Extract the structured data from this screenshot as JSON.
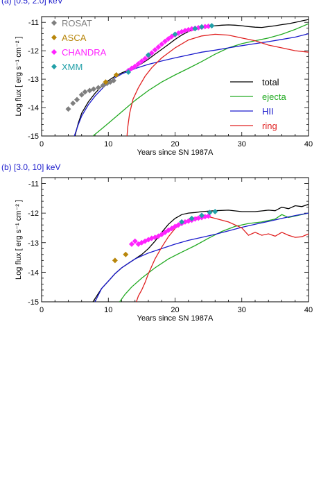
{
  "figure": {
    "panels": [
      {
        "label": "(a) [0.5, 2.0] keV",
        "xlabel": "Years since SN 1987A",
        "ylabel": "Log flux [ erg s⁻¹ cm⁻² ]"
      },
      {
        "label": "(b) [3.0, 10] keV",
        "xlabel": "Years since SN 1987A",
        "ylabel": "Log flux [ erg s⁻¹ cm⁻² ]"
      }
    ],
    "colors": {
      "total": "#000000",
      "ejecta": "#22aa22",
      "hii": "#1a1acc",
      "ring": "#e02020",
      "rosat": "#7f7f7f",
      "asca": "#b8860b",
      "chandra": "#ff22ff",
      "xmm": "#22a0a8",
      "label": "#1a1acc"
    }
  },
  "chart_data": [
    {
      "type": "line",
      "title": "(a) [0.5, 2.0] keV",
      "xlabel": "Years since SN 1987A",
      "ylabel": "Log flux [ erg s⁻¹ cm⁻² ]",
      "xlim": [
        0,
        40
      ],
      "ylim": [
        -15,
        -10.8
      ],
      "xticks": [
        0,
        10,
        20,
        30,
        40
      ],
      "yticks": [
        -15,
        -14,
        -13,
        -12,
        -11
      ],
      "legend_lines": [
        "total",
        "ejecta",
        "HII",
        "ring"
      ],
      "legend_markers": [
        "ROSAT",
        "ASCA",
        "CHANDRA",
        "XMM"
      ],
      "series": [
        {
          "name": "total",
          "type": "line",
          "x": [
            5,
            5.5,
            6,
            7,
            8,
            9,
            10,
            11,
            12,
            13,
            14,
            15,
            16,
            17,
            18,
            19,
            20,
            21,
            22,
            23,
            24,
            25,
            26,
            27,
            28,
            29,
            30,
            31,
            32,
            33,
            34,
            35,
            36,
            37,
            38,
            39,
            40
          ],
          "y": [
            -15,
            -14.55,
            -14.2,
            -13.8,
            -13.5,
            -13.25,
            -13.05,
            -12.9,
            -12.78,
            -12.68,
            -12.58,
            -12.45,
            -12.3,
            -12.12,
            -11.95,
            -11.78,
            -11.6,
            -11.45,
            -11.32,
            -11.25,
            -11.2,
            -11.15,
            -11.12,
            -11.1,
            -11.09,
            -11.1,
            -11.12,
            -11.15,
            -11.17,
            -11.18,
            -11.15,
            -11.12,
            -11.08,
            -11.05,
            -11.0,
            -10.95,
            -10.9
          ]
        },
        {
          "name": "ejecta",
          "type": "line",
          "x": [
            7.7,
            9,
            10,
            12,
            14,
            16,
            18,
            20,
            22,
            24,
            26,
            28,
            30,
            32,
            34,
            36,
            38,
            40
          ],
          "y": [
            -15,
            -14.75,
            -14.55,
            -14.15,
            -13.75,
            -13.4,
            -13.1,
            -12.85,
            -12.62,
            -12.38,
            -12.12,
            -11.9,
            -11.75,
            -11.65,
            -11.55,
            -11.42,
            -11.25,
            -11.05
          ]
        },
        {
          "name": "HII",
          "type": "line",
          "x": [
            4.9,
            5.5,
            6,
            7,
            8,
            9,
            10,
            11,
            12,
            13,
            14,
            15,
            16,
            18,
            20,
            22,
            24,
            26,
            28,
            30,
            32,
            34,
            36,
            38,
            40
          ],
          "y": [
            -15,
            -14.6,
            -14.3,
            -13.9,
            -13.6,
            -13.35,
            -13.12,
            -12.95,
            -12.82,
            -12.72,
            -12.63,
            -12.55,
            -12.48,
            -12.36,
            -12.25,
            -12.15,
            -12.05,
            -11.98,
            -11.9,
            -11.82,
            -11.75,
            -11.68,
            -11.6,
            -11.52,
            -11.4
          ]
        },
        {
          "name": "ring",
          "type": "line",
          "x": [
            12.8,
            12.9,
            13.2,
            13.7,
            14.5,
            15.5,
            16.5,
            18,
            20,
            22,
            24,
            26,
            28,
            30,
            32,
            34,
            36,
            38,
            40
          ],
          "y": [
            -15,
            -14.7,
            -14.2,
            -13.7,
            -13.3,
            -12.9,
            -12.6,
            -12.25,
            -11.9,
            -11.62,
            -11.48,
            -11.42,
            -11.45,
            -11.55,
            -11.65,
            -11.8,
            -11.9,
            -12.0,
            -12.05
          ]
        },
        {
          "name": "ROSAT",
          "type": "scatter",
          "x": [
            4.0,
            4.7,
            5.3,
            6.0,
            6.5,
            7.2,
            7.8,
            8.5,
            9.2,
            9.8,
            10.3,
            10.8
          ],
          "y": [
            -14.05,
            -13.85,
            -13.72,
            -13.55,
            -13.45,
            -13.4,
            -13.35,
            -13.3,
            -13.22,
            -13.15,
            -13.1,
            -13.05
          ]
        },
        {
          "name": "ASCA",
          "type": "scatter",
          "x": [
            9.6,
            11.2
          ],
          "y": [
            -13.1,
            -12.85
          ]
        },
        {
          "name": "CHANDRA",
          "type": "scatter",
          "x": [
            13.0,
            13.5,
            14.0,
            14.5,
            15.0,
            15.5,
            16.0,
            16.5,
            17.0,
            17.5,
            18.0,
            18.5,
            19.0,
            19.5,
            20.0,
            20.5,
            21.0,
            21.5,
            22.0,
            22.5,
            23.0,
            23.5,
            24.0,
            24.5,
            25.0
          ],
          "y": [
            -12.7,
            -12.62,
            -12.55,
            -12.46,
            -12.37,
            -12.28,
            -12.18,
            -12.08,
            -11.97,
            -11.87,
            -11.77,
            -11.67,
            -11.58,
            -11.5,
            -11.44,
            -11.38,
            -11.33,
            -11.29,
            -11.26,
            -11.23,
            -11.21,
            -11.19,
            -11.17,
            -11.15,
            -11.14
          ]
        },
        {
          "name": "XMM",
          "type": "scatter",
          "x": [
            13.0,
            16.0,
            20.0,
            23.0,
            24.0,
            25.5
          ],
          "y": [
            -12.75,
            -12.15,
            -11.42,
            -11.22,
            -11.16,
            -11.12
          ]
        }
      ]
    },
    {
      "type": "line",
      "title": "(b) [3.0, 10] keV",
      "xlabel": "Years since SN 1987A",
      "ylabel": "Log flux [ erg s⁻¹ cm⁻² ]",
      "xlim": [
        0,
        40
      ],
      "ylim": [
        -15,
        -10.8
      ],
      "xticks": [
        0,
        10,
        20,
        30,
        40
      ],
      "yticks": [
        -15,
        -14,
        -13,
        -12,
        -11
      ],
      "series": [
        {
          "name": "total",
          "type": "line",
          "x": [
            7.7,
            9,
            10,
            11,
            12,
            13,
            14,
            15,
            16,
            17,
            18,
            19,
            20,
            21,
            22,
            23,
            24,
            26,
            28,
            30,
            32,
            34,
            35,
            36,
            37,
            38,
            39,
            40
          ],
          "y": [
            -15,
            -14.55,
            -14.3,
            -14.05,
            -13.85,
            -13.7,
            -13.55,
            -13.4,
            -13.2,
            -12.95,
            -12.65,
            -12.38,
            -12.18,
            -12.05,
            -12.0,
            -11.98,
            -11.95,
            -11.92,
            -11.9,
            -11.95,
            -11.95,
            -11.9,
            -11.92,
            -11.8,
            -11.85,
            -11.75,
            -11.78,
            -11.7
          ]
        },
        {
          "name": "ejecta",
          "type": "line",
          "x": [
            11.7,
            12.5,
            13.5,
            15,
            17,
            19,
            21,
            23,
            25,
            27,
            29,
            31,
            33,
            35,
            36,
            37,
            38,
            40
          ],
          "y": [
            -15,
            -14.75,
            -14.5,
            -14.2,
            -13.85,
            -13.55,
            -13.32,
            -13.1,
            -12.85,
            -12.62,
            -12.45,
            -12.35,
            -12.3,
            -12.2,
            -12.05,
            -12.15,
            -12.1,
            -12.0
          ]
        },
        {
          "name": "HII",
          "type": "line",
          "x": [
            8.0,
            9,
            10,
            11,
            12,
            13,
            14,
            15,
            16,
            18,
            20,
            22,
            24,
            26,
            28,
            30,
            32,
            34,
            36,
            38,
            40
          ],
          "y": [
            -15,
            -14.55,
            -14.3,
            -14.05,
            -13.85,
            -13.7,
            -13.55,
            -13.45,
            -13.35,
            -13.2,
            -13.05,
            -12.92,
            -12.82,
            -12.72,
            -12.6,
            -12.48,
            -12.38,
            -12.28,
            -12.18,
            -12.08,
            -12.0
          ]
        },
        {
          "name": "ring",
          "type": "line",
          "x": [
            14.2,
            14.5,
            15,
            15.5,
            16,
            17,
            18,
            19,
            20,
            21,
            22,
            23,
            24,
            25,
            26,
            28,
            30,
            31,
            32,
            33,
            34,
            35,
            36,
            37,
            38,
            39,
            40
          ],
          "y": [
            -15,
            -14.8,
            -14.6,
            -14.35,
            -14.05,
            -13.55,
            -13.15,
            -12.8,
            -12.52,
            -12.35,
            -12.22,
            -12.15,
            -12.12,
            -12.12,
            -12.18,
            -12.3,
            -12.5,
            -12.75,
            -12.65,
            -12.75,
            -12.7,
            -12.78,
            -12.65,
            -12.75,
            -12.82,
            -12.8,
            -12.7
          ]
        },
        {
          "name": "ASCA",
          "type": "scatter",
          "x": [
            11.0,
            12.6
          ],
          "y": [
            -13.6,
            -13.4
          ]
        },
        {
          "name": "CHANDRA",
          "type": "scatter",
          "x": [
            13.5,
            14.0,
            14.5,
            15.0,
            15.5,
            16.0,
            16.5,
            17.0,
            17.5,
            18.0,
            18.5,
            19.0,
            19.5,
            20.0,
            20.5,
            21.0,
            21.5,
            22.0,
            22.5,
            23.0,
            23.5,
            24.0,
            24.5,
            25.0
          ],
          "y": [
            -13.05,
            -12.95,
            -13.05,
            -13.0,
            -12.95,
            -12.9,
            -12.85,
            -12.82,
            -12.78,
            -12.72,
            -12.65,
            -12.58,
            -12.52,
            -12.45,
            -12.4,
            -12.35,
            -12.3,
            -12.27,
            -12.24,
            -12.2,
            -12.17,
            -12.15,
            -12.12,
            -12.1
          ]
        },
        {
          "name": "XMM",
          "type": "scatter",
          "x": [
            21.0,
            22.5,
            24.0,
            25.2,
            26.0
          ],
          "y": [
            -12.3,
            -12.18,
            -12.08,
            -11.98,
            -11.95
          ]
        }
      ]
    }
  ]
}
